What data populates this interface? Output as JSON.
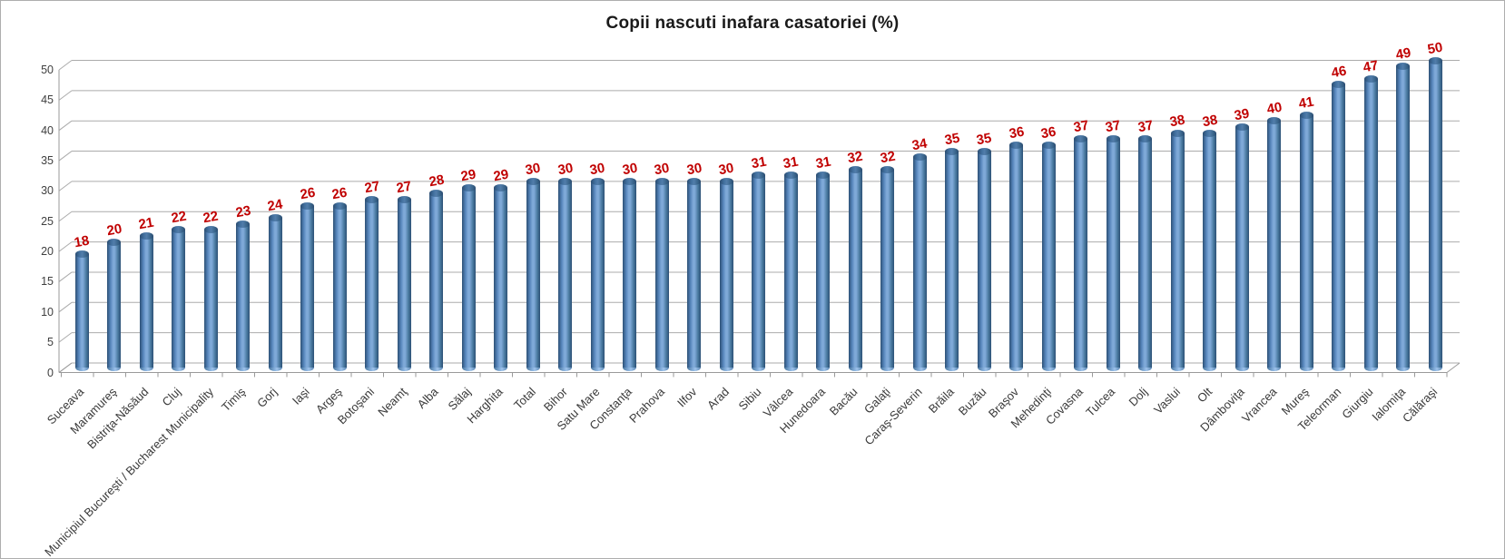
{
  "chart_data": {
    "type": "bar",
    "style": "3d-cylinder",
    "title": "Copii nascuti inafara casatoriei (%)",
    "xlabel": "",
    "ylabel": "",
    "ylim": [
      0,
      50
    ],
    "yticks": [
      0,
      5,
      10,
      15,
      20,
      25,
      30,
      35,
      40,
      45,
      50
    ],
    "grid": true,
    "legend": "none",
    "bar_color": "#4f81bd",
    "value_label_color": "#c00000",
    "categories": [
      "Suceava",
      "Maramureş",
      "Bistriţa-Năsăud",
      "Cluj",
      "Municipiul Bucureşti / Bucharest Municipality",
      "Timiş",
      "Gorj",
      "Iaşi",
      "Argeş",
      "Botoşani",
      "Neamţ",
      "Alba",
      "Sălaj",
      "Harghita",
      "Total",
      "Bihor",
      "Satu Mare",
      "Constanţa",
      "Prahova",
      "Ilfov",
      "Arad",
      "Sibiu",
      "Vâlcea",
      "Hunedoara",
      "Bacău",
      "Galaţi",
      "Caraş-Severin",
      "Brăila",
      "Buzău",
      "Braşov",
      "Mehedinţi",
      "Covasna",
      "Tulcea",
      "Dolj",
      "Vaslui",
      "Olt",
      "Dâmboviţa",
      "Vrancea",
      "Mureş",
      "Teleorman",
      "Giurgiu",
      "Ialomiţa",
      "Călăraşi"
    ],
    "values": [
      18,
      20,
      21,
      22,
      22,
      23,
      24,
      26,
      26,
      27,
      27,
      28,
      29,
      29,
      30,
      30,
      30,
      30,
      30,
      30,
      30,
      31,
      31,
      31,
      32,
      32,
      34,
      35,
      35,
      36,
      36,
      37,
      37,
      37,
      38,
      38,
      39,
      40,
      41,
      46,
      47,
      49,
      50
    ]
  }
}
